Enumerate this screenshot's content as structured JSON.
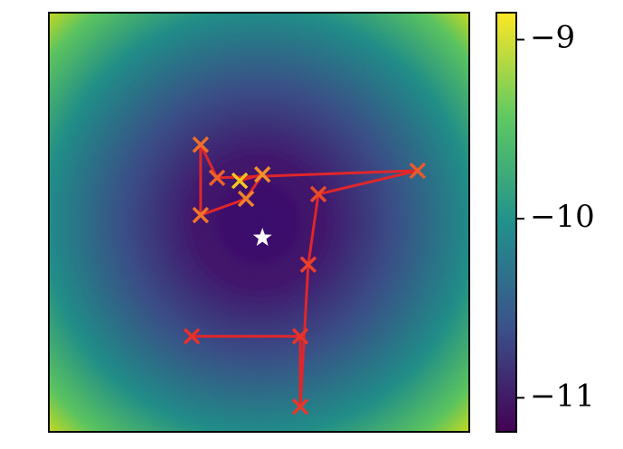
{
  "chart_data": {
    "type": "heatmap-trajectory",
    "xlim": [
      0,
      100
    ],
    "ylim": [
      0,
      100
    ],
    "trajectory": {
      "x": [
        34.0,
        59.8,
        59.8,
        61.7,
        64.1,
        87.7,
        40.0,
        36.1,
        36.1,
        46.9,
        50.8,
        45.4
      ],
      "y": [
        22.8,
        22.8,
        6.0,
        39.9,
        56.7,
        62.3,
        60.6,
        68.5,
        51.7,
        55.6,
        61.4,
        59.9
      ],
      "color": "#e0262a",
      "marker_colors": [
        "#e8302a",
        "#e8342a",
        "#e8382a",
        "#e9402a",
        "#ea4a2a",
        "#eb5a2a",
        "#ec642a",
        "#ed6e2a",
        "#ee762a",
        "#ef822a",
        "#f0902a",
        "#f6c81c"
      ]
    },
    "target": {
      "x": 50.8,
      "y": 46.3,
      "color": "#ffffff"
    },
    "colorbar": {
      "clim": [
        -11.19,
        -8.85
      ],
      "ticks": [
        {
          "value": -9,
          "label": "−9"
        },
        {
          "value": -10,
          "label": "−10"
        },
        {
          "value": -11,
          "label": "−11"
        }
      ]
    }
  }
}
